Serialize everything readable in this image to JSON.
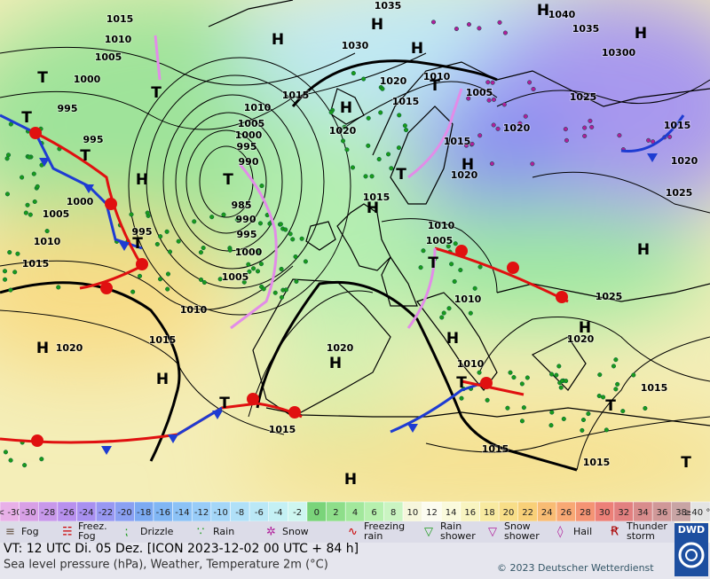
{
  "map": {
    "pressure_labels": [
      "1015",
      "1010",
      "1005",
      "1000",
      "995",
      "995",
      "1000",
      "1005",
      "1010",
      "1015",
      "995",
      "1010",
      "1005",
      "1000",
      "995",
      "990",
      "985",
      "990",
      "995",
      "1000",
      "1005",
      "1010",
      "1015",
      "1020",
      "1020",
      "1015",
      "1015",
      "1020",
      "1020",
      "1015",
      "1010",
      "1005",
      "1015",
      "1020",
      "1020",
      "1015",
      "1010",
      "1005",
      "1010",
      "1010",
      "1015",
      "1015",
      "1015",
      "1020",
      "1025",
      "1025",
      "1020",
      "1015",
      "1025",
      "10300",
      "1035",
      "1040",
      "1035",
      "1030"
    ],
    "highs": [
      "H",
      "H",
      "H",
      "H",
      "H",
      "H",
      "H",
      "H",
      "H",
      "H",
      "H",
      "H",
      "H",
      "H",
      "H",
      "H"
    ],
    "lows": [
      "T",
      "T",
      "T",
      "T",
      "T",
      "T",
      "T",
      "T",
      "T",
      "T",
      "T",
      "T",
      "T"
    ]
  },
  "temperature_scale": {
    "labels": [
      "< -30",
      "-30",
      "-28",
      "-26",
      "-24",
      "-22",
      "-20",
      "-18",
      "-16",
      "-14",
      "-12",
      "-10",
      "-8",
      "-6",
      "-4",
      "-2",
      "0",
      "2",
      "4",
      "6",
      "8",
      "10",
      "12",
      "14",
      "16",
      "18",
      "20",
      "22",
      "24",
      "26",
      "28",
      "30",
      "32",
      "34",
      "36",
      "38",
      "≥40 °C"
    ],
    "colors": [
      "#e8b0e8",
      "#d8a0e6",
      "#c898ea",
      "#b890ee",
      "#a890f0",
      "#9898f2",
      "#8aa0f2",
      "#7caaf2",
      "#80b6f4",
      "#8cc2f6",
      "#98ccf8",
      "#a4d6f8",
      "#b0e0f8",
      "#bae8f6",
      "#c4f0f4",
      "#cef6f0",
      "#7ad47a",
      "#8ede8a",
      "#a2e89c",
      "#b6f0ae",
      "#caf4c2",
      "#f6f6dc",
      "#fcfcf0",
      "#fafadc",
      "#f8f4c0",
      "#f8eaa0",
      "#f8de88",
      "#f8d078",
      "#f8bc74",
      "#f8a874",
      "#f49474",
      "#ec8078",
      "#e28080",
      "#d88c8c",
      "#d09898",
      "#c8a4a4",
      "#e4e4e4"
    ]
  },
  "weather_legend": [
    [
      "Fog"
    ],
    [
      "Freez.",
      "Fog"
    ],
    [
      "Drizzle"
    ],
    [
      "Rain"
    ],
    [
      "Snow"
    ],
    [
      "Freezing",
      "rain"
    ],
    [
      "Rain",
      "shower"
    ],
    [
      "Snow",
      "shower"
    ],
    [
      "Hail"
    ],
    [
      "Thunder",
      "storm"
    ]
  ],
  "logo": "DWD",
  "footer": {
    "valid_time": "VT: 12 UTC Di.  05 Dez. [ICON 2023-12-02  00 UTC + 84 h]",
    "description": "Sea level pressure (hPa), Weather, Temperature 2m (°C)",
    "copyright": "© 2023 Deutscher Wetterdienst"
  }
}
